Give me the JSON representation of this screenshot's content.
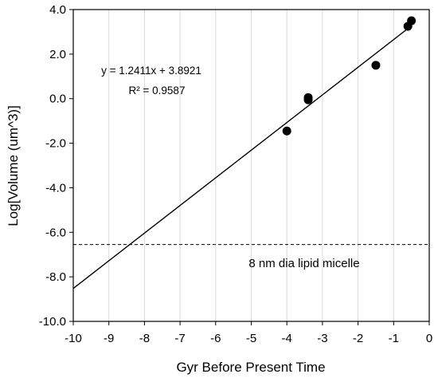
{
  "chart_data": {
    "type": "scatter",
    "title": "",
    "xlabel": "Gyr Before Present Time",
    "ylabel": "Log[Volume (um^3)]",
    "xlim": [
      -10,
      0
    ],
    "ylim": [
      -10,
      4
    ],
    "grid": "vertical",
    "x_ticks": [
      -10,
      -9,
      -8,
      -7,
      -6,
      -5,
      -4,
      -3,
      -2,
      -1,
      0
    ],
    "x_tick_labels": [
      "-10",
      "-9",
      "-8",
      "-7",
      "-6",
      "-5",
      "-4",
      "-3",
      "-2",
      "-1",
      "0"
    ],
    "y_ticks": [
      -10,
      -8,
      -6,
      -4,
      -2,
      0,
      2,
      4
    ],
    "y_tick_labels": [
      "-10.0",
      "-8.0",
      "-6.0",
      "-4.0",
      "-2.0",
      "0.0",
      "2.0",
      "4.0"
    ],
    "points": [
      {
        "x": -4.0,
        "y": -1.45
      },
      {
        "x": -3.4,
        "y": 0.05
      },
      {
        "x": -3.4,
        "y": -0.05
      },
      {
        "x": -1.5,
        "y": 1.5
      },
      {
        "x": -0.6,
        "y": 3.25
      },
      {
        "x": -0.5,
        "y": 3.5
      }
    ],
    "trendline": {
      "slope": 1.2411,
      "intercept": 3.8921,
      "x_range": [
        -10,
        -0.55
      ]
    },
    "equation_text": "y = 1.2411x + 3.8921",
    "r2_text": "R² = 0.9587",
    "reference_line": {
      "y": -6.55,
      "style": "dashed",
      "label": "8 nm dia lipid micelle"
    }
  }
}
